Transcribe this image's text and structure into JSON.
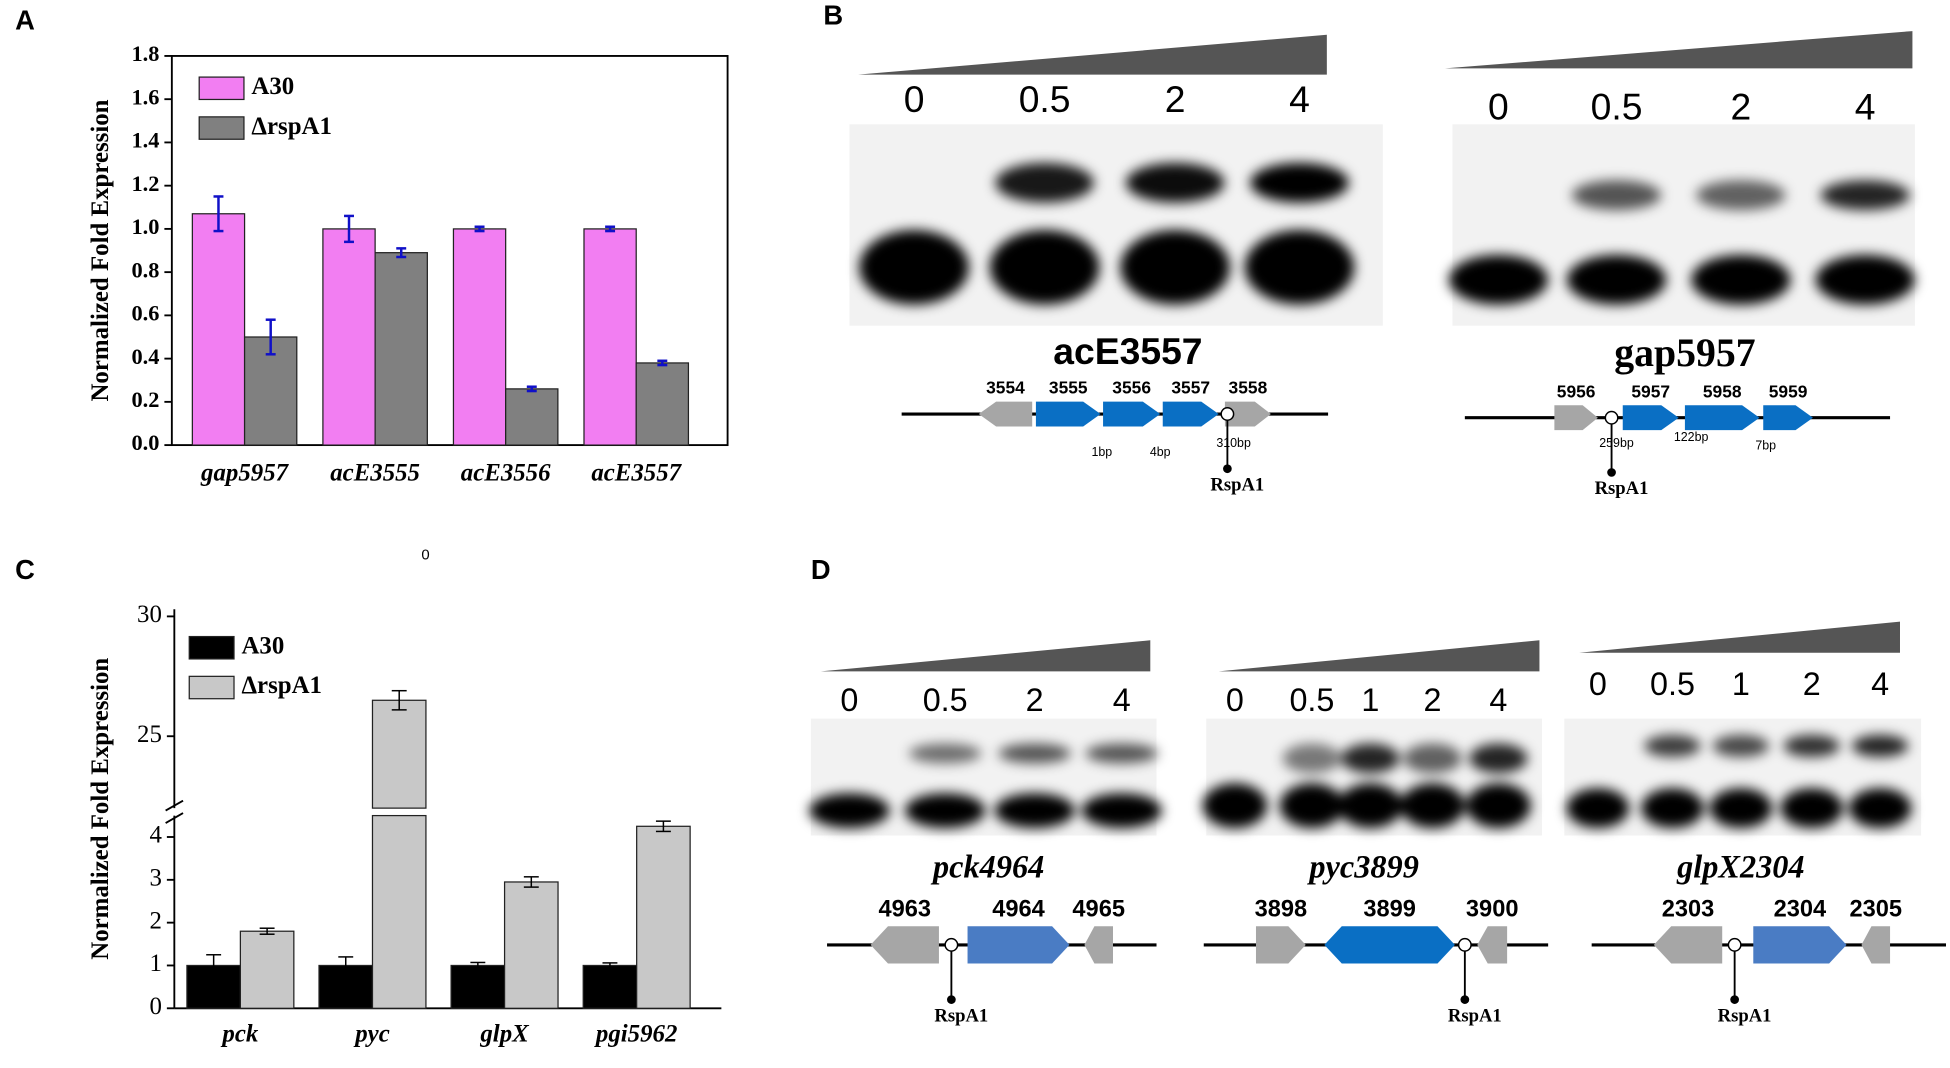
{
  "panel_labels": [
    "A",
    "B",
    "C",
    "D"
  ],
  "chart_data": [
    {
      "type": "bar",
      "y_label": "Normalized Fold Expression",
      "categories": [
        "gap5957",
        "acE3555",
        "acE3556",
        "acE3557"
      ],
      "series": [
        {
          "name": "A30",
          "color": "#f27ef2",
          "values": [
            1.07,
            1.0,
            1.0,
            1.0
          ],
          "errors": [
            0.08,
            0.06,
            0.01,
            0.01
          ]
        },
        {
          "name": "ΔrspA1",
          "color": "#808080",
          "values": [
            0.5,
            0.89,
            0.26,
            0.38
          ],
          "errors": [
            0.08,
            0.02,
            0.01,
            0.01
          ]
        }
      ],
      "error_color": "#1010c8",
      "ylim": [
        0,
        1.8
      ],
      "yticks": [
        {
          "value": 0,
          "label": "0.0"
        },
        0.2,
        0.4,
        0.6,
        0.8,
        {
          "value": 1,
          "label": "1.0"
        },
        1.2,
        1.4,
        1.6,
        1.8
      ],
      "legend": "upper-left",
      "frame": true
    },
    {
      "type": "bar",
      "y_label": "Normalized Fold Expression",
      "categories": [
        "pck",
        "pyc",
        "glpX",
        "pgi5962"
      ],
      "series": [
        {
          "name": "A30",
          "color": "#000000",
          "values": [
            1.0,
            1.0,
            1.0,
            1.0
          ],
          "errors": [
            0.25,
            0.2,
            0.07,
            0.06
          ]
        },
        {
          "name": "ΔrspA1",
          "color": "#c8c8c8",
          "values": [
            1.8,
            26.5,
            2.95,
            4.25
          ],
          "errors": [
            0.07,
            0.4,
            0.12,
            0.12
          ]
        }
      ],
      "error_color": "#000000",
      "ylim": [
        0,
        30.3
      ],
      "ybreak": [
        4.5,
        22
      ],
      "yticks": [
        0,
        1,
        2,
        3,
        4,
        25,
        30
      ],
      "legend": "upper-left",
      "frame": false
    }
  ],
  "annotation": "0",
  "gels": [
    {
      "concentrations": [
        0,
        0.5,
        2,
        4
      ],
      "title": "acE3557",
      "genes": [
        "3554",
        "3555",
        "3556",
        "3557",
        "3558"
      ],
      "distances": [
        "1bp",
        "4bp",
        "310bp"
      ],
      "regulator": "RspA1"
    },
    {
      "concentrations": [
        0,
        0.5,
        2,
        4
      ],
      "title": "gap5957",
      "genes": [
        "5956",
        "5957",
        "5958",
        "5959"
      ],
      "distances": [
        "259bp",
        "122bp",
        "7bp"
      ],
      "regulator": "RspA1"
    },
    {
      "concentrations": [
        0,
        0.5,
        2,
        4
      ],
      "title": "pck4964",
      "genes": [
        "4963",
        "4964",
        "4965"
      ],
      "regulator": "RspA1"
    },
    {
      "concentrations": [
        0,
        0.5,
        1,
        2,
        4
      ],
      "title": "pyc3899",
      "genes": [
        "3898",
        "3899",
        "3900"
      ],
      "regulator": "RspA1"
    },
    {
      "concentrations": [
        0,
        0.5,
        1,
        2,
        4
      ],
      "title": "glpX2304",
      "genes": [
        "2303",
        "2304",
        "2305"
      ],
      "regulator": "RspA1"
    }
  ]
}
